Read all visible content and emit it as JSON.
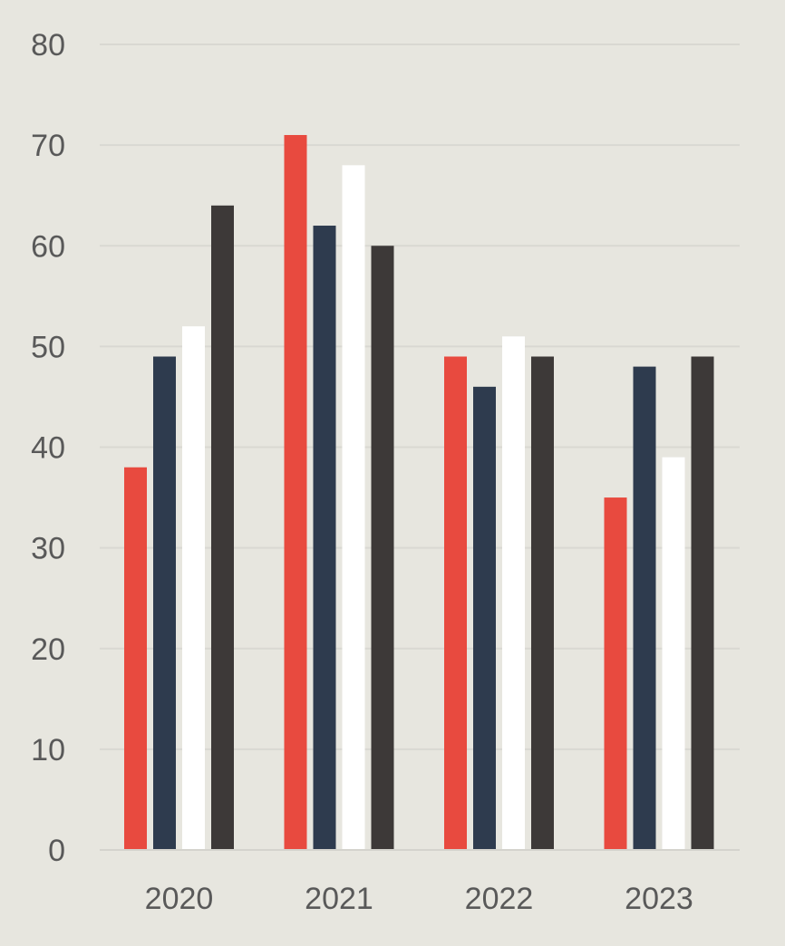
{
  "chart_data": {
    "type": "bar",
    "categories": [
      "2020",
      "2021",
      "2022",
      "2023"
    ],
    "series": [
      {
        "color": "#e84a3f",
        "values": [
          38,
          71,
          49,
          35
        ]
      },
      {
        "color": "#2e3b4e",
        "values": [
          49,
          62,
          46,
          48
        ]
      },
      {
        "color": "#ffffff",
        "values": [
          52,
          68,
          51,
          39
        ]
      },
      {
        "color": "#3d3938",
        "values": [
          64,
          60,
          49,
          49
        ]
      }
    ],
    "yticks": [
      "0",
      "10",
      "20",
      "30",
      "40",
      "50",
      "60",
      "70",
      "80"
    ],
    "ylim": [
      0,
      80
    ],
    "grid": true,
    "legend": "none",
    "background": "#e7e6df"
  }
}
